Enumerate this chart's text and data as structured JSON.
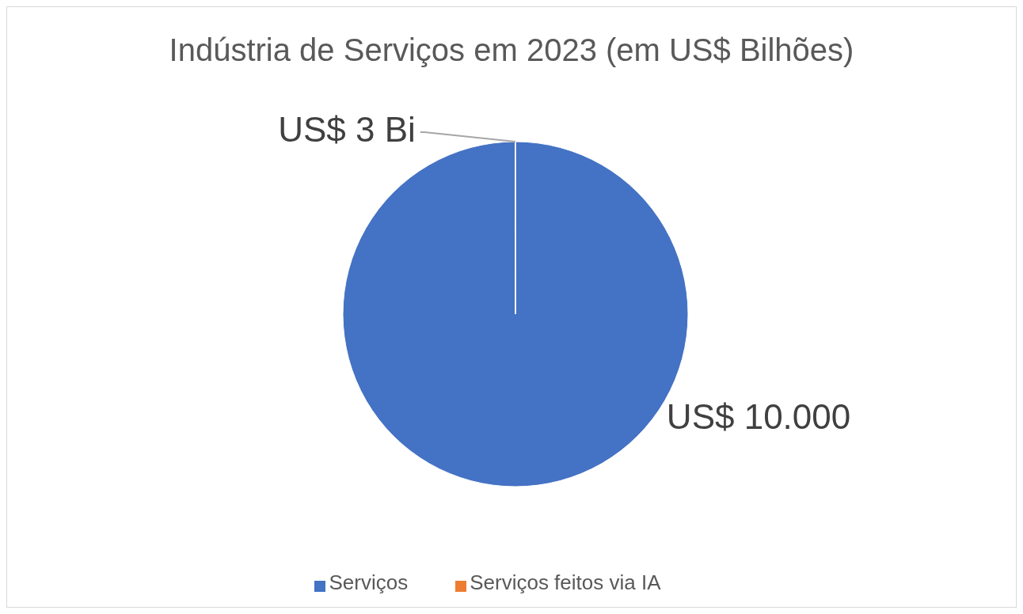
{
  "chart_data": {
    "type": "pie",
    "title": "Indústria de Serviços em 2023 (em US$ Bilhões)",
    "categories": [
      "Serviços",
      "Serviços feitos via IA"
    ],
    "values": [
      10000,
      3
    ],
    "colors": [
      "#4472c4",
      "#ed7d31"
    ],
    "value_labels": [
      "US$ 10.000",
      "US$ 3 Bi"
    ],
    "legend": "bottom"
  }
}
